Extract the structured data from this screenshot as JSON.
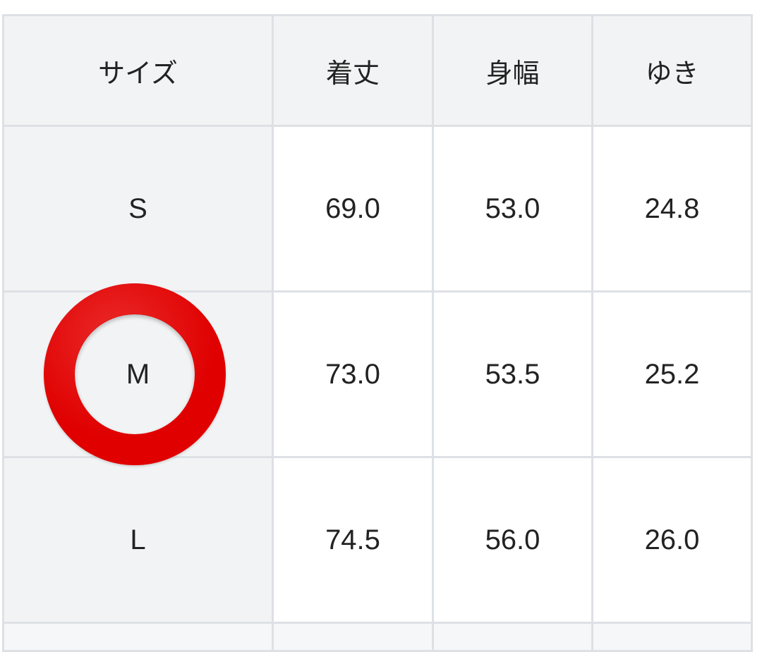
{
  "table": {
    "headers": [
      "サイズ",
      "着丈",
      "身幅",
      "ゆき"
    ],
    "rows": [
      [
        "S",
        "69.0",
        "53.0",
        "24.8"
      ],
      [
        "M",
        "73.0",
        "53.5",
        "25.2"
      ],
      [
        "L",
        "74.5",
        "56.0",
        "26.0"
      ]
    ]
  },
  "highlight": {
    "row": "M",
    "marker": "red-circle",
    "color": "#e00000"
  }
}
